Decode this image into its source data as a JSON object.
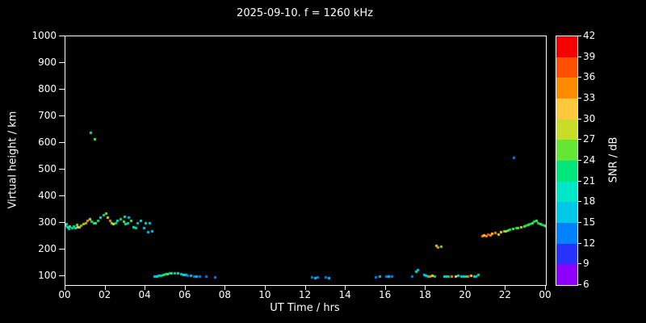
{
  "chart_data": {
    "type": "scatter",
    "title": "2025-09-10. f = 1260 kHz",
    "xlabel": "UT Time / hrs",
    "ylabel": "Virtual height / km",
    "xlim": [
      0,
      24
    ],
    "ylim": [
      66,
      1000
    ],
    "x_tick_labels": [
      "00",
      "02",
      "04",
      "06",
      "08",
      "10",
      "12",
      "14",
      "16",
      "18",
      "20",
      "22",
      "00"
    ],
    "y_tick_values": [
      100,
      200,
      300,
      400,
      500,
      600,
      700,
      800,
      900,
      1000
    ],
    "grid": false,
    "background": "#000000",
    "axis_color": "#ffffff",
    "colorbar": {
      "label": "SNR / dB",
      "min": 6,
      "max": 42,
      "step": 3,
      "tick_labels_top_to_bottom": [
        "42",
        "39",
        "36",
        "33",
        "30",
        "27",
        "24",
        "21",
        "18",
        "15",
        "12",
        "9",
        "6"
      ],
      "segment_colors_top_to_bottom": [
        "#f40000",
        "#ff5000",
        "#ff8c00",
        "#ffc83c",
        "#c8dc28",
        "#64e632",
        "#00e67d",
        "#00e6c8",
        "#00c8e6",
        "#0082ff",
        "#2832ff",
        "#8c00ff"
      ]
    },
    "points_format": [
      "ut_hours",
      "virtual_height_km",
      "snr_db"
    ],
    "points": [
      [
        0.0,
        290,
        21
      ],
      [
        0.05,
        295,
        18
      ],
      [
        0.1,
        285,
        18
      ],
      [
        0.15,
        278,
        15
      ],
      [
        0.2,
        288,
        24
      ],
      [
        0.33,
        282,
        21
      ],
      [
        0.4,
        286,
        21
      ],
      [
        0.5,
        280,
        18
      ],
      [
        0.55,
        292,
        24
      ],
      [
        0.6,
        285,
        30
      ],
      [
        0.7,
        283,
        27
      ],
      [
        0.75,
        290,
        33
      ],
      [
        0.9,
        295,
        24
      ],
      [
        1.0,
        300,
        33
      ],
      [
        1.1,
        310,
        34
      ],
      [
        1.2,
        315,
        27
      ],
      [
        1.25,
        640,
        20
      ],
      [
        1.3,
        305,
        21
      ],
      [
        1.4,
        298,
        18
      ],
      [
        1.45,
        615,
        26
      ],
      [
        1.5,
        300,
        24
      ],
      [
        1.6,
        310,
        21
      ],
      [
        1.75,
        320,
        19
      ],
      [
        1.9,
        330,
        22
      ],
      [
        2.0,
        335,
        25
      ],
      [
        2.1,
        320,
        28
      ],
      [
        2.2,
        310,
        33
      ],
      [
        2.3,
        300,
        24
      ],
      [
        2.4,
        295,
        30
      ],
      [
        2.5,
        300,
        21
      ],
      [
        2.6,
        310,
        18
      ],
      [
        2.75,
        315,
        22
      ],
      [
        2.9,
        305,
        25
      ],
      [
        2.95,
        325,
        18
      ],
      [
        3.0,
        295,
        18
      ],
      [
        3.1,
        300,
        21
      ],
      [
        3.15,
        320,
        15
      ],
      [
        3.25,
        310,
        24
      ],
      [
        3.4,
        285,
        18
      ],
      [
        3.5,
        280,
        21
      ],
      [
        3.6,
        300,
        17
      ],
      [
        3.75,
        310,
        20
      ],
      [
        3.9,
        280,
        16
      ],
      [
        4.0,
        300,
        18
      ],
      [
        4.1,
        265,
        15
      ],
      [
        4.2,
        300,
        17
      ],
      [
        4.3,
        270,
        15
      ],
      [
        4.45,
        100,
        15
      ],
      [
        4.55,
        100,
        18
      ],
      [
        4.65,
        102,
        15
      ],
      [
        4.75,
        103,
        21
      ],
      [
        4.9,
        105,
        18
      ],
      [
        5.0,
        107,
        21
      ],
      [
        5.1,
        108,
        24
      ],
      [
        5.2,
        110,
        21
      ],
      [
        5.3,
        110,
        18
      ],
      [
        5.45,
        110,
        21
      ],
      [
        5.6,
        110,
        18
      ],
      [
        5.75,
        108,
        15
      ],
      [
        5.9,
        106,
        18
      ],
      [
        6.0,
        104,
        15
      ],
      [
        6.1,
        103,
        12
      ],
      [
        6.25,
        102,
        15
      ],
      [
        6.4,
        100,
        12
      ],
      [
        6.55,
        100,
        15
      ],
      [
        6.7,
        100,
        12
      ],
      [
        7.0,
        98,
        12
      ],
      [
        7.45,
        97,
        12
      ],
      [
        12.3,
        95,
        12
      ],
      [
        12.45,
        92,
        15
      ],
      [
        12.6,
        95,
        12
      ],
      [
        13.0,
        95,
        12
      ],
      [
        13.15,
        93,
        15
      ],
      [
        15.5,
        95,
        12
      ],
      [
        15.7,
        98,
        15
      ],
      [
        16.0,
        100,
        12
      ],
      [
        16.15,
        100,
        15
      ],
      [
        16.3,
        98,
        12
      ],
      [
        17.3,
        100,
        12
      ],
      [
        17.5,
        118,
        18
      ],
      [
        17.6,
        125,
        15
      ],
      [
        17.9,
        105,
        15
      ],
      [
        18.0,
        102,
        15
      ],
      [
        18.1,
        100,
        21
      ],
      [
        18.2,
        100,
        33
      ],
      [
        18.3,
        103,
        30
      ],
      [
        18.45,
        100,
        21
      ],
      [
        18.5,
        215,
        27
      ],
      [
        18.6,
        210,
        33
      ],
      [
        18.75,
        212,
        24
      ],
      [
        18.9,
        100,
        18
      ],
      [
        19.0,
        100,
        15
      ],
      [
        19.1,
        98,
        21
      ],
      [
        19.3,
        100,
        33
      ],
      [
        19.5,
        100,
        30
      ],
      [
        19.6,
        102,
        18
      ],
      [
        19.75,
        100,
        15
      ],
      [
        19.9,
        98,
        21
      ],
      [
        20.0,
        100,
        18
      ],
      [
        20.1,
        100,
        33
      ],
      [
        20.25,
        102,
        30
      ],
      [
        20.4,
        100,
        18
      ],
      [
        20.5,
        100,
        15
      ],
      [
        20.6,
        105,
        21
      ],
      [
        20.8,
        250,
        33
      ],
      [
        20.9,
        255,
        30
      ],
      [
        21.0,
        252,
        33
      ],
      [
        21.1,
        258,
        36
      ],
      [
        21.2,
        255,
        33
      ],
      [
        21.3,
        260,
        30
      ],
      [
        21.45,
        262,
        33
      ],
      [
        21.6,
        258,
        27
      ],
      [
        21.75,
        265,
        30
      ],
      [
        21.9,
        268,
        24
      ],
      [
        22.0,
        270,
        27
      ],
      [
        22.1,
        272,
        24
      ],
      [
        22.2,
        275,
        21
      ],
      [
        22.35,
        278,
        24
      ],
      [
        22.4,
        545,
        12
      ],
      [
        22.5,
        280,
        21
      ],
      [
        22.6,
        282,
        24
      ],
      [
        22.75,
        285,
        27
      ],
      [
        22.9,
        288,
        24
      ],
      [
        23.0,
        290,
        21
      ],
      [
        23.1,
        292,
        24
      ],
      [
        23.2,
        295,
        21
      ],
      [
        23.3,
        300,
        24
      ],
      [
        23.4,
        305,
        22
      ],
      [
        23.5,
        310,
        24
      ],
      [
        23.6,
        300,
        21
      ],
      [
        23.7,
        295,
        24
      ],
      [
        23.8,
        292,
        21
      ],
      [
        23.9,
        290,
        24
      ],
      [
        24.0,
        288,
        21
      ]
    ]
  }
}
